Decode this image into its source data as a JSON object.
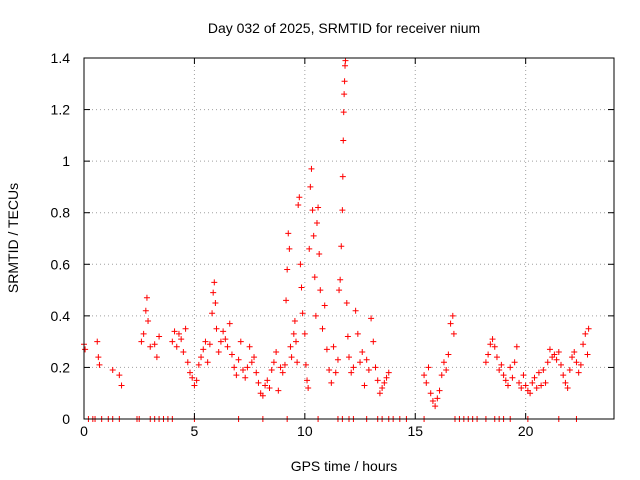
{
  "chart_data": {
    "type": "scatter",
    "title": "Day 032 of 2025, SRMTID for receiver nium",
    "xlabel": "GPS time / hours",
    "ylabel": "SRMTID / TECUs",
    "xlim": [
      0,
      24
    ],
    "ylim": [
      0,
      1.4
    ],
    "xticks": [
      0,
      5,
      10,
      15,
      20
    ],
    "xtick_labels": [
      "0",
      "5",
      "10",
      "15",
      "20"
    ],
    "yticks": [
      0,
      0.2,
      0.4,
      0.6,
      0.8,
      1.0,
      1.2,
      1.4
    ],
    "ytick_labels": [
      "0",
      "0.2",
      "0.4",
      "0.6",
      "0.8",
      "1",
      "1.2",
      "1.4"
    ],
    "grid": true,
    "marker": "plus",
    "series": [
      {
        "name": "SRMTID",
        "color": "#ff0000",
        "points": [
          [
            0.0,
            0.29
          ],
          [
            0.05,
            0.27
          ],
          [
            0.6,
            0.3
          ],
          [
            0.65,
            0.24
          ],
          [
            0.7,
            0.21
          ],
          [
            1.3,
            0.19
          ],
          [
            1.6,
            0.17
          ],
          [
            1.7,
            0.13
          ],
          [
            2.6,
            0.3
          ],
          [
            2.7,
            0.33
          ],
          [
            2.8,
            0.42
          ],
          [
            2.85,
            0.47
          ],
          [
            2.9,
            0.38
          ],
          [
            3.0,
            0.28
          ],
          [
            3.2,
            0.29
          ],
          [
            3.3,
            0.24
          ],
          [
            3.4,
            0.32
          ],
          [
            4.0,
            0.3
          ],
          [
            4.1,
            0.34
          ],
          [
            4.2,
            0.28
          ],
          [
            4.3,
            0.33
          ],
          [
            4.4,
            0.31
          ],
          [
            4.5,
            0.26
          ],
          [
            4.6,
            0.35
          ],
          [
            4.7,
            0.22
          ],
          [
            4.8,
            0.18
          ],
          [
            4.9,
            0.16
          ],
          [
            5.0,
            0.13
          ],
          [
            5.1,
            0.15
          ],
          [
            5.2,
            0.21
          ],
          [
            5.3,
            0.24
          ],
          [
            5.4,
            0.27
          ],
          [
            5.5,
            0.3
          ],
          [
            5.6,
            0.22
          ],
          [
            5.7,
            0.29
          ],
          [
            5.8,
            0.41
          ],
          [
            5.85,
            0.49
          ],
          [
            5.9,
            0.53
          ],
          [
            5.95,
            0.45
          ],
          [
            6.0,
            0.35
          ],
          [
            6.1,
            0.26
          ],
          [
            6.2,
            0.3
          ],
          [
            6.3,
            0.34
          ],
          [
            6.4,
            0.31
          ],
          [
            6.5,
            0.28
          ],
          [
            6.6,
            0.37
          ],
          [
            6.7,
            0.25
          ],
          [
            6.8,
            0.2
          ],
          [
            6.9,
            0.17
          ],
          [
            7.0,
            0.23
          ],
          [
            7.1,
            0.3
          ],
          [
            7.2,
            0.19
          ],
          [
            7.3,
            0.16
          ],
          [
            7.4,
            0.2
          ],
          [
            7.5,
            0.28
          ],
          [
            7.6,
            0.22
          ],
          [
            7.7,
            0.24
          ],
          [
            7.8,
            0.18
          ],
          [
            7.9,
            0.14
          ],
          [
            8.0,
            0.1
          ],
          [
            8.1,
            0.09
          ],
          [
            8.2,
            0.13
          ],
          [
            8.3,
            0.15
          ],
          [
            8.4,
            0.12
          ],
          [
            8.5,
            0.19
          ],
          [
            8.6,
            0.22
          ],
          [
            8.7,
            0.26
          ],
          [
            8.8,
            0.11
          ],
          [
            8.9,
            0.2
          ],
          [
            9.0,
            0.18
          ],
          [
            9.1,
            0.21
          ],
          [
            9.15,
            0.46
          ],
          [
            9.2,
            0.58
          ],
          [
            9.25,
            0.72
          ],
          [
            9.3,
            0.66
          ],
          [
            9.35,
            0.28
          ],
          [
            9.4,
            0.24
          ],
          [
            9.5,
            0.33
          ],
          [
            9.55,
            0.38
          ],
          [
            9.6,
            0.3
          ],
          [
            9.65,
            0.22
          ],
          [
            9.7,
            0.83
          ],
          [
            9.75,
            0.86
          ],
          [
            9.8,
            0.6
          ],
          [
            9.85,
            0.51
          ],
          [
            9.9,
            0.41
          ],
          [
            10.0,
            0.33
          ],
          [
            10.05,
            0.21
          ],
          [
            10.1,
            0.15
          ],
          [
            10.15,
            0.12
          ],
          [
            10.2,
            0.66
          ],
          [
            10.25,
            0.9
          ],
          [
            10.3,
            0.97
          ],
          [
            10.35,
            0.81
          ],
          [
            10.4,
            0.71
          ],
          [
            10.45,
            0.55
          ],
          [
            10.5,
            0.4
          ],
          [
            10.55,
            0.76
          ],
          [
            10.6,
            0.82
          ],
          [
            10.65,
            0.64
          ],
          [
            10.7,
            0.5
          ],
          [
            10.8,
            0.35
          ],
          [
            10.9,
            0.44
          ],
          [
            11.0,
            0.27
          ],
          [
            11.1,
            0.19
          ],
          [
            11.2,
            0.14
          ],
          [
            11.3,
            0.28
          ],
          [
            11.4,
            0.18
          ],
          [
            11.5,
            0.23
          ],
          [
            11.55,
            0.5
          ],
          [
            11.6,
            0.54
          ],
          [
            11.65,
            0.67
          ],
          [
            11.7,
            0.81
          ],
          [
            11.72,
            0.94
          ],
          [
            11.74,
            1.08
          ],
          [
            11.76,
            1.19
          ],
          [
            11.78,
            1.26
          ],
          [
            11.8,
            1.31
          ],
          [
            11.82,
            1.37
          ],
          [
            11.84,
            1.39
          ],
          [
            11.9,
            0.45
          ],
          [
            11.95,
            0.32
          ],
          [
            12.0,
            0.24
          ],
          [
            12.1,
            0.18
          ],
          [
            12.2,
            0.2
          ],
          [
            12.3,
            0.42
          ],
          [
            12.4,
            0.33
          ],
          [
            12.5,
            0.22
          ],
          [
            12.6,
            0.26
          ],
          [
            12.7,
            0.13
          ],
          [
            12.8,
            0.23
          ],
          [
            12.9,
            0.19
          ],
          [
            13.0,
            0.39
          ],
          [
            13.1,
            0.3
          ],
          [
            13.2,
            0.2
          ],
          [
            13.3,
            0.15
          ],
          [
            13.4,
            0.1
          ],
          [
            13.5,
            0.12
          ],
          [
            13.6,
            0.14
          ],
          [
            13.7,
            0.16
          ],
          [
            13.8,
            0.18
          ],
          [
            15.4,
            0.17
          ],
          [
            15.5,
            0.14
          ],
          [
            15.6,
            0.2
          ],
          [
            15.7,
            0.1
          ],
          [
            15.8,
            0.07
          ],
          [
            15.9,
            0.05
          ],
          [
            16.0,
            0.08
          ],
          [
            16.1,
            0.11
          ],
          [
            16.2,
            0.17
          ],
          [
            16.3,
            0.22
          ],
          [
            16.4,
            0.19
          ],
          [
            16.5,
            0.25
          ],
          [
            16.6,
            0.37
          ],
          [
            16.7,
            0.4
          ],
          [
            16.75,
            0.33
          ],
          [
            18.2,
            0.22
          ],
          [
            18.3,
            0.25
          ],
          [
            18.4,
            0.29
          ],
          [
            18.5,
            0.31
          ],
          [
            18.6,
            0.28
          ],
          [
            18.7,
            0.24
          ],
          [
            18.8,
            0.19
          ],
          [
            18.9,
            0.21
          ],
          [
            19.0,
            0.17
          ],
          [
            19.1,
            0.15
          ],
          [
            19.2,
            0.13
          ],
          [
            19.3,
            0.2
          ],
          [
            19.4,
            0.16
          ],
          [
            19.5,
            0.22
          ],
          [
            19.6,
            0.28
          ],
          [
            19.7,
            0.14
          ],
          [
            19.8,
            0.12
          ],
          [
            19.9,
            0.17
          ],
          [
            20.0,
            0.13
          ],
          [
            20.1,
            0.11
          ],
          [
            20.2,
            0.1
          ],
          [
            20.3,
            0.14
          ],
          [
            20.4,
            0.16
          ],
          [
            20.5,
            0.12
          ],
          [
            20.6,
            0.18
          ],
          [
            20.7,
            0.13
          ],
          [
            20.8,
            0.19
          ],
          [
            20.9,
            0.14
          ],
          [
            21.0,
            0.22
          ],
          [
            21.1,
            0.27
          ],
          [
            21.2,
            0.24
          ],
          [
            21.3,
            0.25
          ],
          [
            21.4,
            0.23
          ],
          [
            21.5,
            0.26
          ],
          [
            21.6,
            0.21
          ],
          [
            21.7,
            0.17
          ],
          [
            21.8,
            0.14
          ],
          [
            21.9,
            0.12
          ],
          [
            22.0,
            0.19
          ],
          [
            22.1,
            0.24
          ],
          [
            22.2,
            0.26
          ],
          [
            22.3,
            0.22
          ],
          [
            22.4,
            0.18
          ],
          [
            22.5,
            0.21
          ],
          [
            22.6,
            0.29
          ],
          [
            22.7,
            0.33
          ],
          [
            22.8,
            0.25
          ],
          [
            22.85,
            0.35
          ],
          [
            0.2,
            0.0
          ],
          [
            0.4,
            0.0
          ],
          [
            0.5,
            0.0
          ],
          [
            0.8,
            0.0
          ],
          [
            1.1,
            0.0
          ],
          [
            1.3,
            0.0
          ],
          [
            1.6,
            0.0
          ],
          [
            2.4,
            0.0
          ],
          [
            2.5,
            0.0
          ],
          [
            3.0,
            0.0
          ],
          [
            3.2,
            0.0
          ],
          [
            3.4,
            0.0
          ],
          [
            3.6,
            0.0
          ],
          [
            3.8,
            0.0
          ],
          [
            4.0,
            0.0
          ],
          [
            5.0,
            0.0
          ],
          [
            7.0,
            0.0
          ],
          [
            8.1,
            0.0
          ],
          [
            9.2,
            0.0
          ],
          [
            10.6,
            0.0
          ],
          [
            11.5,
            0.0
          ],
          [
            11.7,
            0.0
          ],
          [
            12.0,
            0.0
          ],
          [
            12.2,
            0.0
          ],
          [
            12.8,
            0.0
          ],
          [
            13.3,
            0.0
          ],
          [
            13.5,
            0.0
          ],
          [
            13.8,
            0.0
          ],
          [
            14.0,
            0.0
          ],
          [
            14.3,
            0.0
          ],
          [
            14.6,
            0.0
          ],
          [
            15.4,
            0.0
          ],
          [
            16.8,
            0.0
          ],
          [
            17.0,
            0.0
          ],
          [
            17.2,
            0.0
          ],
          [
            17.4,
            0.0
          ],
          [
            17.6,
            0.0
          ],
          [
            17.8,
            0.0
          ],
          [
            18.2,
            0.0
          ],
          [
            18.6,
            0.0
          ],
          [
            18.8,
            0.0
          ],
          [
            19.0,
            0.0
          ],
          [
            19.3,
            0.0
          ],
          [
            20.1,
            0.0
          ],
          [
            21.5,
            0.0
          ],
          [
            22.3,
            0.0
          ]
        ]
      }
    ]
  }
}
